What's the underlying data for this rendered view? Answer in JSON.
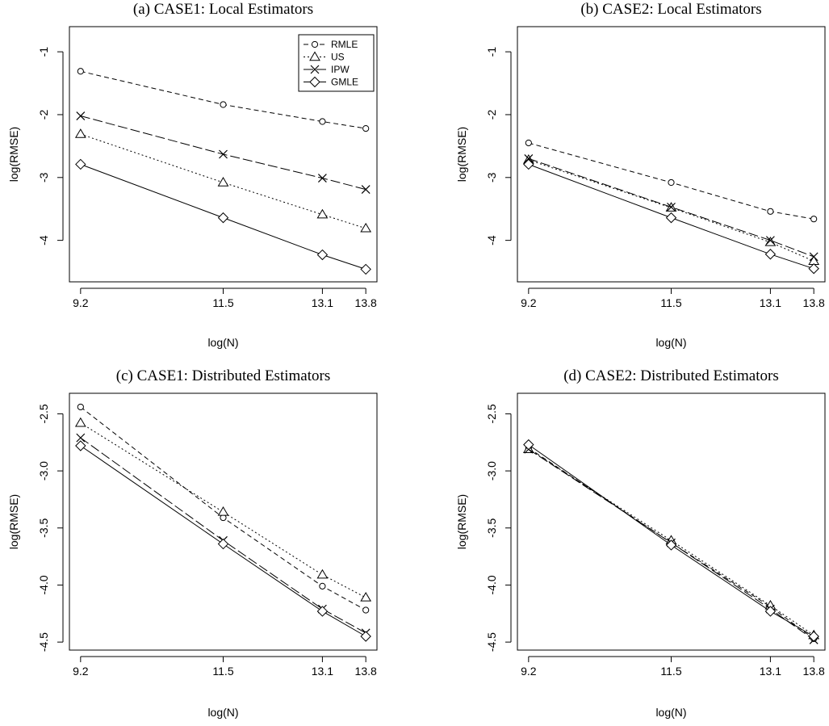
{
  "colors": {
    "background": "#ffffff",
    "ink": "#000000"
  },
  "legend": {
    "placement": "top-right",
    "panel": 0,
    "items": [
      {
        "name": "RMLE",
        "marker": "circle",
        "dash": "dashed"
      },
      {
        "name": "US",
        "marker": "triangle",
        "dash": "dotted"
      },
      {
        "name": "IPW",
        "marker": "cross",
        "dash": "longdash"
      },
      {
        "name": "GMLE",
        "marker": "diamond",
        "dash": "solid"
      }
    ]
  },
  "chart_data": [
    {
      "type": "line",
      "title": "(a) CASE1: Local Estimators",
      "xlabel": "log(N)",
      "ylabel": "log(RMSE)",
      "x": [
        9.2,
        11.5,
        13.1,
        13.8
      ],
      "x_ticks": [
        "9.2",
        "11.5",
        "13.1",
        "13.8"
      ],
      "y_ticks": [
        {
          "value": -4,
          "label": "-4"
        },
        {
          "value": -3,
          "label": "-3"
        },
        {
          "value": -2,
          "label": "-2"
        },
        {
          "value": -1,
          "label": "-1"
        }
      ],
      "xlim": [
        9.02,
        13.98
      ],
      "ylim": [
        -4.66,
        -0.6
      ],
      "series": [
        {
          "name": "RMLE",
          "values": [
            -1.31,
            -1.84,
            -2.11,
            -2.22
          ]
        },
        {
          "name": "US",
          "values": [
            -2.31,
            -3.08,
            -3.59,
            -3.81
          ]
        },
        {
          "name": "IPW",
          "values": [
            -2.02,
            -2.63,
            -3.01,
            -3.19
          ]
        },
        {
          "name": "GMLE",
          "values": [
            -2.79,
            -3.64,
            -4.23,
            -4.46
          ]
        }
      ]
    },
    {
      "type": "line",
      "title": "(b) CASE2: Local Estimators",
      "xlabel": "log(N)",
      "ylabel": "log(RMSE)",
      "x": [
        9.2,
        11.5,
        13.1,
        13.8
      ],
      "x_ticks": [
        "9.2",
        "11.5",
        "13.1",
        "13.8"
      ],
      "y_ticks": [
        {
          "value": -4,
          "label": "-4"
        },
        {
          "value": -3,
          "label": "-3"
        },
        {
          "value": -2,
          "label": "-2"
        },
        {
          "value": -1,
          "label": "-1"
        }
      ],
      "xlim": [
        9.02,
        13.98
      ],
      "ylim": [
        -4.66,
        -0.6
      ],
      "series": [
        {
          "name": "RMLE",
          "values": [
            -2.45,
            -3.08,
            -3.54,
            -3.66
          ]
        },
        {
          "name": "US",
          "values": [
            -2.72,
            -3.48,
            -4.03,
            -4.33
          ]
        },
        {
          "name": "IPW",
          "values": [
            -2.7,
            -3.47,
            -4.0,
            -4.26
          ]
        },
        {
          "name": "GMLE",
          "values": [
            -2.79,
            -3.64,
            -4.22,
            -4.45
          ]
        }
      ]
    },
    {
      "type": "line",
      "title": "(c) CASE1: Distributed Estimators",
      "xlabel": "log(N)",
      "ylabel": "log(RMSE)",
      "x": [
        9.2,
        11.5,
        13.1,
        13.8
      ],
      "x_ticks": [
        "9.2",
        "11.5",
        "13.1",
        "13.8"
      ],
      "y_ticks": [
        {
          "value": -4.5,
          "label": "-4.5"
        },
        {
          "value": -4.0,
          "label": "-4.0"
        },
        {
          "value": -3.5,
          "label": "-3.5"
        },
        {
          "value": -3.0,
          "label": "-3.0"
        },
        {
          "value": -2.5,
          "label": "-2.5"
        }
      ],
      "xlim": [
        9.02,
        13.98
      ],
      "ylim": [
        -4.57,
        -2.32
      ],
      "series": [
        {
          "name": "RMLE",
          "values": [
            -2.44,
            -3.41,
            -4.01,
            -4.22
          ]
        },
        {
          "name": "US",
          "values": [
            -2.58,
            -3.36,
            -3.91,
            -4.11
          ]
        },
        {
          "name": "IPW",
          "values": [
            -2.71,
            -3.61,
            -4.21,
            -4.42
          ]
        },
        {
          "name": "GMLE",
          "values": [
            -2.78,
            -3.64,
            -4.23,
            -4.45
          ]
        }
      ]
    },
    {
      "type": "line",
      "title": "(d) CASE2: Distributed Estimators",
      "xlabel": "log(N)",
      "ylabel": "log(RMSE)",
      "x": [
        9.2,
        11.5,
        13.1,
        13.8
      ],
      "x_ticks": [
        "9.2",
        "11.5",
        "13.1",
        "13.8"
      ],
      "y_ticks": [
        {
          "value": -4.5,
          "label": "-4.5"
        },
        {
          "value": -4.0,
          "label": "-4.0"
        },
        {
          "value": -3.5,
          "label": "-3.5"
        },
        {
          "value": -3.0,
          "label": "-3.0"
        },
        {
          "value": -2.5,
          "label": "-2.5"
        }
      ],
      "xlim": [
        9.02,
        13.98
      ],
      "ylim": [
        -4.57,
        -2.32
      ],
      "series": [
        {
          "name": "RMLE",
          "values": [
            -2.8,
            -3.63,
            -4.19,
            -4.47
          ]
        },
        {
          "name": "US",
          "values": [
            -2.81,
            -3.61,
            -4.18,
            -4.44
          ]
        },
        {
          "name": "IPW",
          "values": [
            -2.81,
            -3.63,
            -4.21,
            -4.48
          ]
        },
        {
          "name": "GMLE",
          "values": [
            -2.77,
            -3.65,
            -4.23,
            -4.45
          ]
        }
      ]
    }
  ]
}
